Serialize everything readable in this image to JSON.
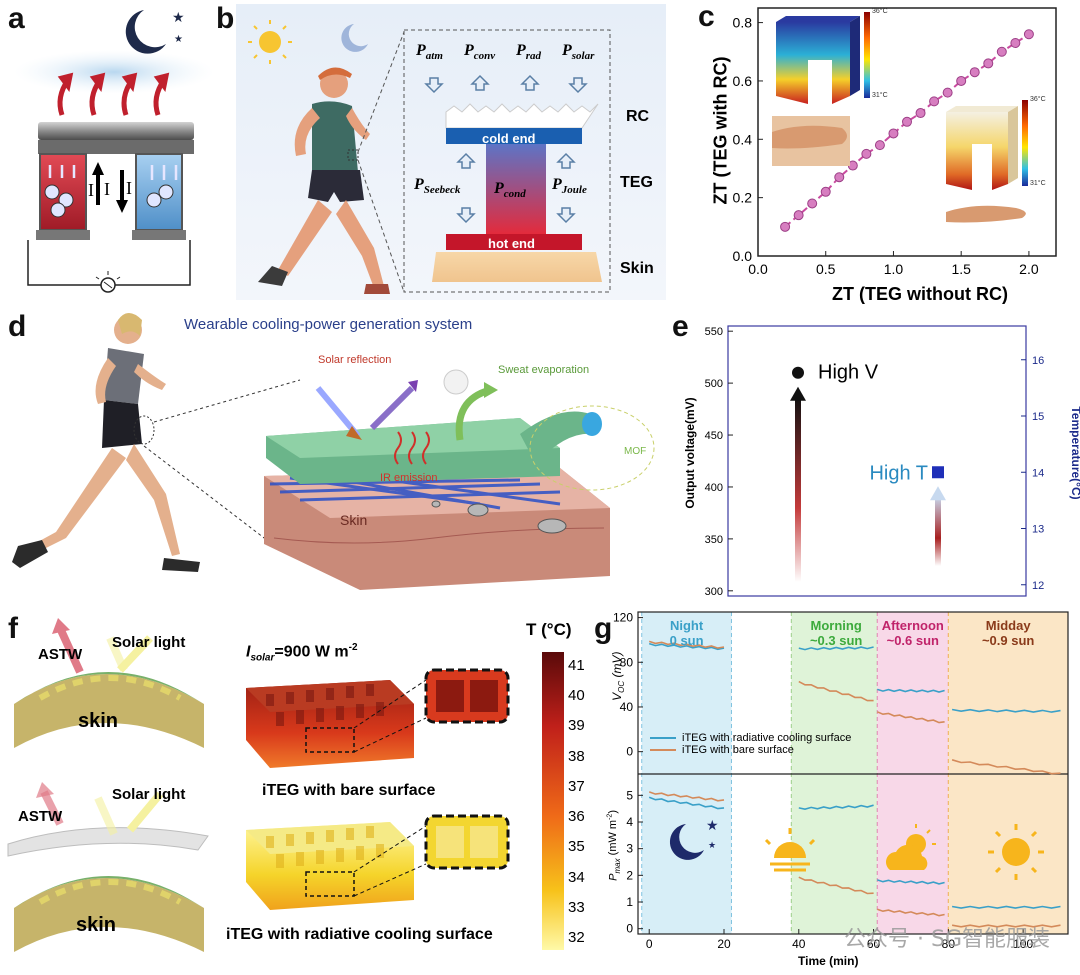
{
  "panels": {
    "a": {
      "label": "a",
      "currents": [
        "I",
        "I"
      ]
    },
    "b": {
      "label": "b",
      "powers_top": [
        "P_atm",
        "P_conv",
        "P_rad",
        "P_solar"
      ],
      "p_atm_sub": "atm",
      "p_conv_sub": "conv",
      "p_rad_sub": "rad",
      "p_solar_sub": "solar",
      "p_seebeck_sub": "Seebeck",
      "p_cond_sub": "cond",
      "p_joule_sub": "Joule",
      "p_letter": "P",
      "cold_end": "cold end",
      "hot_end": "hot end",
      "layer_rc": "RC",
      "layer_teg": "TEG",
      "layer_skin": "Skin"
    },
    "c": {
      "label": "c",
      "ylabel": "ZT (TEG with RC)",
      "xlabel": "ZT  (TEG without RC)",
      "inset1_top": "36°C",
      "inset1_bot": "31°C",
      "inset2_top": "36°C",
      "inset2_bot": "31°C"
    },
    "d": {
      "label": "d",
      "title": "Wearable cooling-power generation system",
      "solar_reflection": "Solar reflection",
      "sweat": "Sweat evaporation",
      "ir": "IR emission",
      "mof": "MOF",
      "skin": "Skin"
    },
    "e": {
      "label": "e",
      "ylabel_left": "Output voltage(mV)",
      "ylabel_right": "Temperature(°C)",
      "high_v": "High V",
      "high_t": "High T"
    },
    "f": {
      "label": "f",
      "astw1": "ASTW",
      "solar1": "Solar light",
      "skin1": "skin",
      "astw2": "ASTW",
      "solar2": "Solar light",
      "skin2": "skin",
      "isolar": "I",
      "isolar_sub": "solar",
      "isolar_val": "=900 W m",
      "isolar_exp": "-2",
      "cap_bare": "iTEG with bare surface",
      "cap_rc": "iTEG with  radiative cooling surface",
      "cb_title": "T (°C)",
      "cb_ticks": [
        "41",
        "40",
        "39",
        "38",
        "37",
        "36",
        "35",
        "34",
        "33",
        "32"
      ]
    },
    "g": {
      "label": "g",
      "periods": [
        {
          "name": "Night",
          "sun": "0 sun"
        },
        {
          "name": "Morning",
          "sun": "~0.3 sun"
        },
        {
          "name": "Afternoon",
          "sun": "~0.6 sun"
        },
        {
          "name": "Midday",
          "sun": "~0.9 sun"
        }
      ],
      "ylabel_top": "V_OC (mV)",
      "ylabel_bottom": "P_max (mW m-2)",
      "xlabel": "Time (min)",
      "legend": [
        "iTEG with radiative cooling surface",
        "iTEG with bare surface"
      ]
    }
  },
  "watermark": "公众号 · SG智能服装",
  "colors": {
    "teg_series": "#c94a9f",
    "rc_line": "#3aa0c8",
    "bare_line": "#d48a5a",
    "night_bg": "#d7eef7",
    "morning_bg": "#dff3d8",
    "afternoon_bg": "#f8d8e8",
    "midday_bg": "#fbe6c6"
  },
  "chart_data": [
    {
      "type": "line",
      "id": "panel-c",
      "xlabel": "ZT  (TEG without RC)",
      "ylabel": "ZT (TEG with RC)",
      "xlim": [
        0.0,
        2.2
      ],
      "ylim": [
        0.0,
        0.85
      ],
      "xticks": [
        0.0,
        0.5,
        1.0,
        1.5,
        2.0
      ],
      "yticks": [
        0.0,
        0.2,
        0.4,
        0.6,
        0.8
      ],
      "series": [
        {
          "x": [
            0.2,
            0.3,
            0.4,
            0.5,
            0.6,
            0.7,
            0.8,
            0.9,
            1.0,
            1.1,
            1.2,
            1.3,
            1.4,
            1.5,
            1.6,
            1.7,
            1.8,
            1.9,
            2.0
          ],
          "values": [
            0.1,
            0.14,
            0.18,
            0.22,
            0.27,
            0.31,
            0.35,
            0.38,
            0.42,
            0.46,
            0.49,
            0.53,
            0.56,
            0.6,
            0.63,
            0.66,
            0.7,
            0.73,
            0.76
          ]
        }
      ],
      "grid": false
    },
    {
      "type": "scatter",
      "id": "panel-e",
      "ylabel": "Output voltage(mV)",
      "ylabel_right": "Temperature(°C)",
      "ylim": [
        295,
        555
      ],
      "yticks": [
        300,
        350,
        400,
        450,
        500,
        550
      ],
      "ylim_right": [
        11.8,
        16.6
      ],
      "yticks_right": [
        12,
        13,
        14,
        15,
        16
      ],
      "points": [
        {
          "label": "High V",
          "y": 510,
          "axis": "left"
        },
        {
          "label": "High T",
          "y": 14.0,
          "axis": "right"
        }
      ]
    },
    {
      "type": "line",
      "id": "panel-g-top",
      "ylabel": "V_OC (mV)",
      "xlim": [
        -3,
        112
      ],
      "ylim": [
        -20,
        125
      ],
      "yticks": [
        0,
        40,
        80,
        120
      ],
      "series": [
        {
          "name": "iTEG with radiative cooling surface",
          "segments": [
            {
              "x": [
                0,
                20
              ],
              "y": [
                96,
                92
              ]
            },
            {
              "x": [
                40,
                60
              ],
              "y": [
                92,
                93
              ]
            },
            {
              "x": [
                61,
                79
              ],
              "y": [
                55,
                54
              ]
            },
            {
              "x": [
                81,
                110
              ],
              "y": [
                37,
                36
              ]
            }
          ]
        },
        {
          "name": "iTEG with bare surface",
          "segments": [
            {
              "x": [
                0,
                20
              ],
              "y": [
                98,
                93
              ]
            },
            {
              "x": [
                40,
                60
              ],
              "y": [
                62,
                45
              ]
            },
            {
              "x": [
                61,
                79
              ],
              "y": [
                35,
                26
              ]
            },
            {
              "x": [
                81,
                110
              ],
              "y": [
                -8,
                -20
              ]
            }
          ]
        }
      ]
    },
    {
      "type": "line",
      "id": "panel-g-bottom",
      "ylabel": "P_max (mW m-2)",
      "xlabel": "Time (min)",
      "xlim": [
        -3,
        112
      ],
      "ylim": [
        -0.2,
        5.8
      ],
      "xticks": [
        0,
        20,
        40,
        60,
        80,
        100
      ],
      "yticks": [
        0,
        1,
        2,
        3,
        4,
        5
      ],
      "series": [
        {
          "name": "iTEG with radiative cooling surface",
          "segments": [
            {
              "x": [
                0,
                20
              ],
              "y": [
                4.9,
                4.5
              ]
            },
            {
              "x": [
                40,
                60
              ],
              "y": [
                4.5,
                4.6
              ]
            },
            {
              "x": [
                61,
                79
              ],
              "y": [
                1.8,
                1.7
              ]
            },
            {
              "x": [
                81,
                110
              ],
              "y": [
                0.8,
                0.8
              ]
            }
          ]
        },
        {
          "name": "iTEG with bare surface",
          "segments": [
            {
              "x": [
                0,
                20
              ],
              "y": [
                5.1,
                4.8
              ]
            },
            {
              "x": [
                40,
                60
              ],
              "y": [
                1.9,
                1.3
              ]
            },
            {
              "x": [
                61,
                79
              ],
              "y": [
                0.7,
                0.5
              ]
            },
            {
              "x": [
                81,
                110
              ],
              "y": [
                0.1,
                0.1
              ]
            }
          ]
        }
      ]
    }
  ]
}
